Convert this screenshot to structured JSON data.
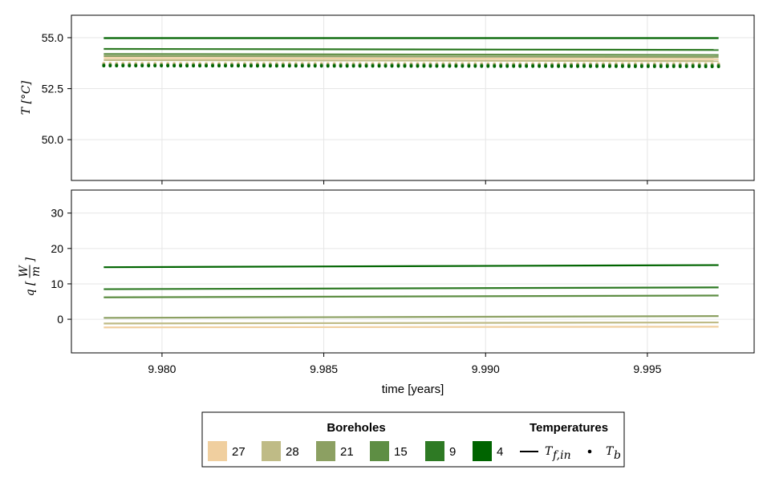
{
  "chart_data": [
    {
      "type": "line",
      "panel": "temperature",
      "ylabel": "T [°C]",
      "ylabel_parts": {
        "var": "T",
        "unit": "[°C]"
      },
      "xlim": [
        9.9772,
        9.9983
      ],
      "ylim": [
        48.0,
        56.1
      ],
      "yticks": [
        50.0,
        52.5,
        55.0
      ],
      "ytick_labels": [
        "50.0",
        "52.5",
        "55.0"
      ],
      "xticks": [
        9.98,
        9.985,
        9.99,
        9.995
      ],
      "grid": true,
      "x_range": [
        9.9782,
        9.9972
      ],
      "series": [
        {
          "name": "27",
          "color": "#f0cf9f",
          "line": [
            54.0,
            53.95
          ],
          "points": [
            53.74,
            53.72
          ]
        },
        {
          "name": "28",
          "color": "#bfbb86",
          "line": [
            53.9,
            53.85
          ],
          "points": [
            53.7,
            53.68
          ]
        },
        {
          "name": "21",
          "color": "#8ca062",
          "line": [
            54.1,
            54.05
          ],
          "points": [
            53.68,
            53.66
          ]
        },
        {
          "name": "15",
          "color": "#5e8e44",
          "line": [
            54.2,
            54.15
          ],
          "points": [
            53.66,
            53.64
          ]
        },
        {
          "name": "9",
          "color": "#2e7a24",
          "line": [
            54.45,
            54.4
          ],
          "points": [
            53.64,
            53.62
          ]
        },
        {
          "name": "4",
          "color": "#006400",
          "line": [
            54.98,
            54.98
          ],
          "points": [
            53.62,
            53.58
          ]
        }
      ]
    },
    {
      "type": "line",
      "panel": "heat_flow",
      "ylabel": "q [W/m]",
      "ylabel_parts": {
        "var": "q",
        "num": "W",
        "den": "m"
      },
      "xlabel": "time [years]",
      "xlim": [
        9.9772,
        9.9983
      ],
      "ylim": [
        -9.5,
        36.5
      ],
      "yticks": [
        0,
        10,
        20,
        30
      ],
      "ytick_labels": [
        "0",
        "10",
        "20",
        "30"
      ],
      "xticks": [
        9.98,
        9.985,
        9.99,
        9.995
      ],
      "xtick_labels": [
        "9.980",
        "9.985",
        "9.990",
        "9.995"
      ],
      "grid": true,
      "x_range": [
        9.9782,
        9.9972
      ],
      "series": [
        {
          "name": "27",
          "color": "#f0cf9f",
          "line": [
            -2.3,
            -2.1
          ]
        },
        {
          "name": "28",
          "color": "#bfbb86",
          "line": [
            -1.2,
            -0.9
          ]
        },
        {
          "name": "21",
          "color": "#8ca062",
          "line": [
            0.4,
            0.9
          ]
        },
        {
          "name": "15",
          "color": "#5e8e44",
          "line": [
            6.2,
            6.7
          ]
        },
        {
          "name": "9",
          "color": "#2e7a24",
          "line": [
            8.5,
            9.0
          ]
        },
        {
          "name": "4",
          "color": "#006400",
          "line": [
            14.7,
            15.3
          ]
        }
      ]
    }
  ],
  "legend": {
    "placement": "bottom-center",
    "boreholes_title": "Boreholes",
    "temperatures_title": "Temperatures",
    "boreholes": [
      {
        "label": "27",
        "color": "#f0cf9f"
      },
      {
        "label": "28",
        "color": "#bfbb86"
      },
      {
        "label": "21",
        "color": "#8ca062"
      },
      {
        "label": "15",
        "color": "#5e8e44"
      },
      {
        "label": "9",
        "color": "#2e7a24"
      },
      {
        "label": "4",
        "color": "#006400"
      }
    ],
    "temperatures": [
      {
        "label": "T",
        "sub": "f,in",
        "marker": "line"
      },
      {
        "label": "T",
        "sub": "b",
        "marker": "dot"
      }
    ]
  }
}
